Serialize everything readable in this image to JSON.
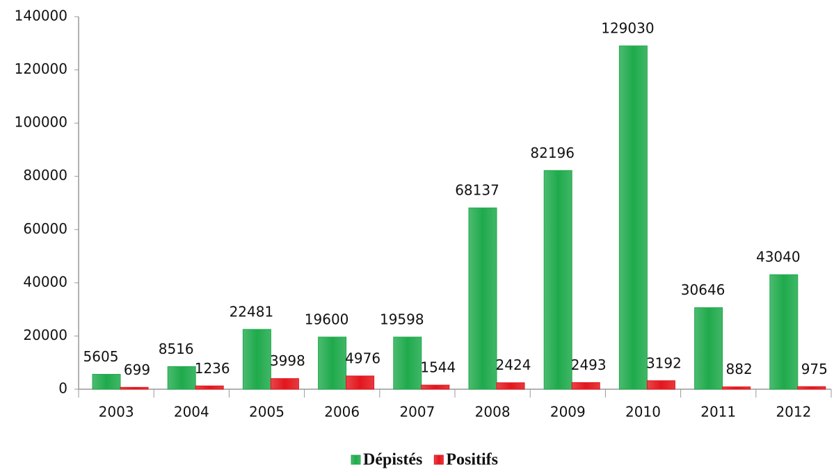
{
  "chart_data": {
    "type": "bar",
    "categories": [
      "2003",
      "2004",
      "2005",
      "2006",
      "2007",
      "2008",
      "2009",
      "2010",
      "2011",
      "2012"
    ],
    "series": [
      {
        "name": "Dépistés",
        "color": "#1faa4c",
        "values": [
          5605,
          8516,
          22481,
          19600,
          19598,
          68137,
          82196,
          129030,
          30646,
          43040
        ]
      },
      {
        "name": "Positifs",
        "color": "#e3161d",
        "values": [
          699,
          1236,
          3998,
          4976,
          1544,
          2424,
          2493,
          3192,
          882,
          975
        ]
      }
    ],
    "ylim": [
      0,
      140000
    ],
    "yticks": [
      0,
      20000,
      40000,
      60000,
      80000,
      100000,
      120000,
      140000
    ],
    "grid": false,
    "legend": "bottom"
  }
}
